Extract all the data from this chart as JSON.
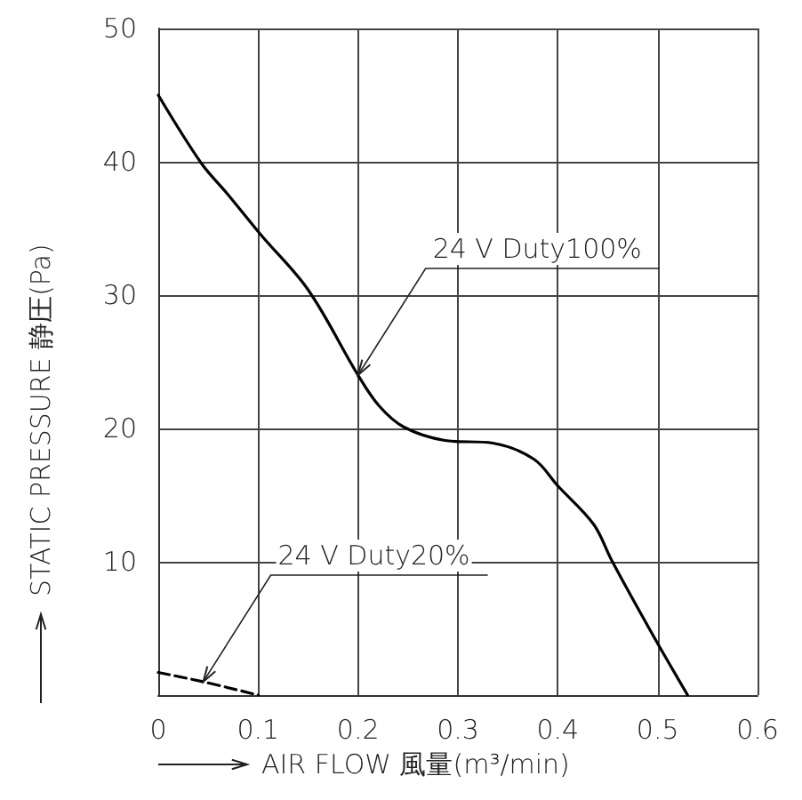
{
  "chart_data": {
    "type": "line",
    "xlabel": "AIR FLOW 風量(m³/min)",
    "ylabel": "STATIC PRESSURE 静圧(Pa)",
    "xlim": [
      0,
      0.6
    ],
    "xticks": [
      0,
      0.1,
      0.2,
      0.3,
      0.4,
      0.5,
      0.6
    ],
    "ylim": [
      0,
      50
    ],
    "yticks": [
      {
        "value": 0,
        "label": null
      },
      10,
      20,
      30,
      40,
      50
    ],
    "grid": true,
    "marker": "none",
    "series": [
      {
        "color": "#000000",
        "line_style": "solid",
        "x": [
          0,
          0.043,
          0.068,
          0.103,
          0.15,
          0.2,
          0.221,
          0.246,
          0.287,
          0.335,
          0.376,
          0.4,
          0.436,
          0.454,
          0.496,
          0.53
        ],
        "values": [
          45,
          39.9,
          37.7,
          34.5,
          30.4,
          24,
          21.7,
          20.1,
          19.1,
          18.9,
          17.7,
          15.7,
          12.8,
          10.1,
          4.4,
          0
        ]
      },
      {
        "color": "#000000",
        "line_style": "dashed",
        "x": [
          0,
          0.045,
          0.1
        ],
        "values": [
          1.7,
          1,
          0
        ]
      }
    ],
    "annotations": [
      {
        "text": "24 V Duty100%",
        "x": 0.2,
        "y": 24
      },
      {
        "text": "24 V Duty20%",
        "x": 0.045,
        "y": 1
      }
    ]
  }
}
